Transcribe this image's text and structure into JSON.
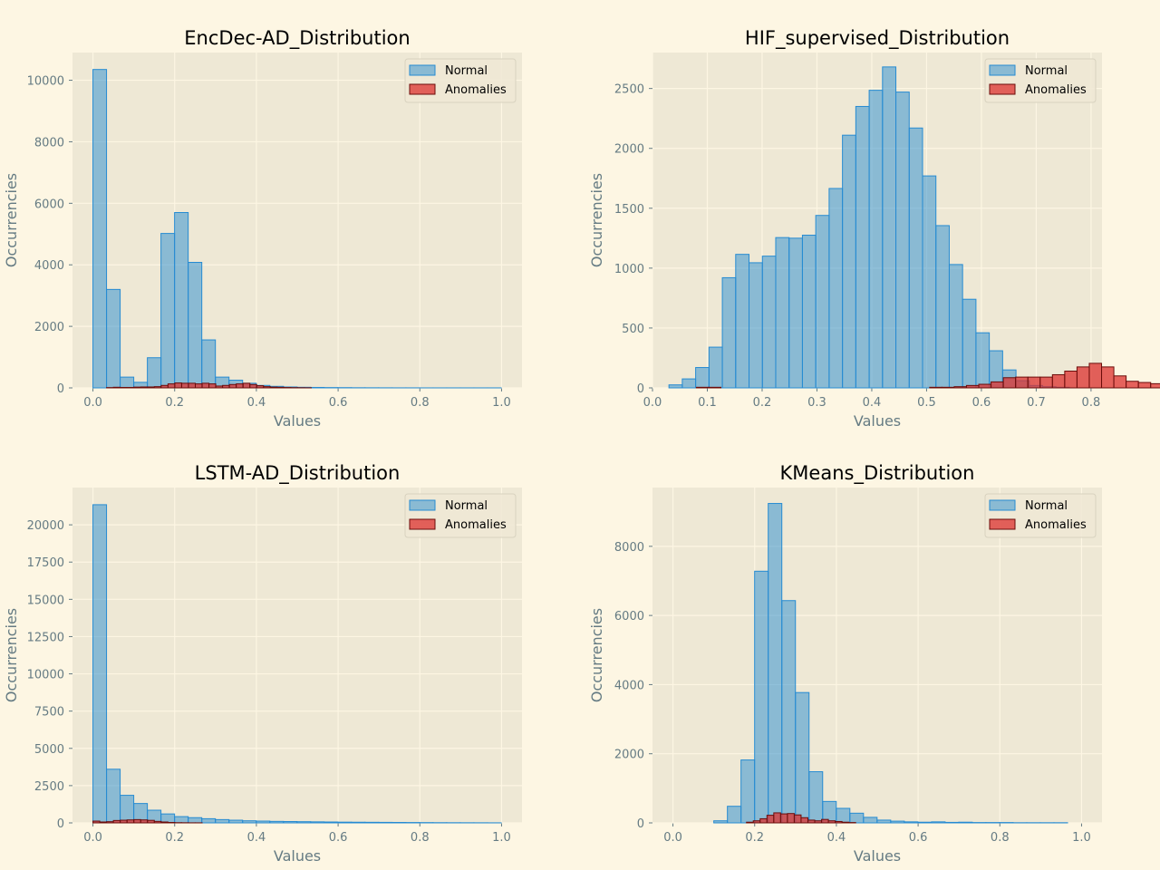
{
  "colors": {
    "figure_bg": "#fdf6e3",
    "axes_bg": "#eee8d5",
    "grid": "#fdf6e3",
    "normal_fill": "#268bd2",
    "normal_edge": "#268bd2",
    "anomaly_fill": "#dc322f",
    "anomaly_edge": "#6b0d0b",
    "text": "#657b83"
  },
  "chart_data": [
    {
      "type": "bar",
      "title": "EncDec-AD_Distribution",
      "xlabel": "Values",
      "ylabel": "Occurrencies",
      "xlim": [
        -0.05,
        1.05
      ],
      "ylim": [
        0,
        10900
      ],
      "xticks": [
        0.0,
        0.2,
        0.4,
        0.6,
        0.8,
        1.0
      ],
      "xtick_labels": [
        "0.0",
        "0.2",
        "0.4",
        "0.6",
        "0.8",
        "1.0"
      ],
      "yticks": [
        0,
        2000,
        4000,
        6000,
        8000,
        10000
      ],
      "ytick_labels": [
        "0",
        "2000",
        "4000",
        "6000",
        "8000",
        "10000"
      ],
      "grid": true,
      "legend": "top-right",
      "series": [
        {
          "name": "Normal",
          "bin_start": 0.0,
          "bin_width": 0.0333,
          "values": [
            10350,
            3200,
            350,
            180,
            980,
            5020,
            5700,
            4080,
            1560,
            350,
            250,
            150,
            80,
            50,
            30,
            20,
            15,
            10,
            8,
            5,
            4,
            3,
            2,
            2,
            1,
            1,
            1,
            1,
            1,
            1
          ]
        },
        {
          "name": "Anomalies",
          "bin_start": 0.0,
          "bin_width": 0.0167,
          "values": [
            0,
            0,
            10,
            20,
            15,
            15,
            25,
            30,
            30,
            40,
            80,
            130,
            160,
            150,
            150,
            130,
            150,
            130,
            60,
            80,
            110,
            130,
            150,
            110,
            70,
            40,
            25,
            20,
            12,
            8,
            5,
            3
          ]
        }
      ]
    },
    {
      "type": "bar",
      "title": "HIF_supervised_Distribution",
      "xlabel": "Values",
      "ylabel": "Occurrencies",
      "xlim": [
        0.0,
        0.82
      ],
      "ylim": [
        0,
        2800
      ],
      "xticks": [
        0.0,
        0.1,
        0.2,
        0.3,
        0.4,
        0.5,
        0.6,
        0.7,
        0.8
      ],
      "xtick_labels": [
        "0.0",
        "0.1",
        "0.2",
        "0.3",
        "0.4",
        "0.5",
        "0.6",
        "0.7",
        "0.8"
      ],
      "yticks": [
        0,
        500,
        1000,
        1500,
        2000,
        2500
      ],
      "ytick_labels": [
        "0",
        "500",
        "1000",
        "1500",
        "2000",
        "2500"
      ],
      "grid": true,
      "legend": "top-right",
      "series": [
        {
          "name": "Normal",
          "bin_start": 0.03,
          "bin_width": 0.02435,
          "values": [
            25,
            75,
            170,
            340,
            920,
            1115,
            1045,
            1100,
            1255,
            1250,
            1275,
            1440,
            1665,
            2110,
            2350,
            2485,
            2680,
            2470,
            2170,
            1770,
            1355,
            1030,
            740,
            460,
            310,
            150,
            60,
            20,
            10,
            5
          ]
        },
        {
          "name": "Anomalies",
          "bin_start": 0.08,
          "bin_width": 0.0224,
          "values": [
            5,
            5,
            0,
            0,
            0,
            0,
            0,
            0,
            0,
            0,
            0,
            0,
            0,
            0,
            0,
            0,
            0,
            0,
            0,
            5,
            5,
            10,
            20,
            30,
            50,
            85,
            90,
            90,
            90,
            110,
            140,
            175,
            205,
            175,
            100,
            55,
            45,
            35,
            20,
            10,
            5,
            2
          ]
        }
      ]
    },
    {
      "type": "bar",
      "title": "LSTM-AD_Distribution",
      "xlabel": "Values",
      "ylabel": "Occurrencies",
      "xlim": [
        -0.05,
        1.05
      ],
      "ylim": [
        0,
        22500
      ],
      "xticks": [
        0.0,
        0.2,
        0.4,
        0.6,
        0.8,
        1.0
      ],
      "xtick_labels": [
        "0.0",
        "0.2",
        "0.4",
        "0.6",
        "0.8",
        "1.0"
      ],
      "yticks": [
        0,
        2500,
        5000,
        7500,
        10000,
        12500,
        15000,
        17500,
        20000
      ],
      "ytick_labels": [
        "0",
        "2500",
        "5000",
        "7500",
        "10000",
        "12500",
        "15000",
        "17500",
        "20000"
      ],
      "grid": true,
      "legend": "top-right",
      "series": [
        {
          "name": "Normal",
          "bin_start": 0.0,
          "bin_width": 0.0333,
          "values": [
            21350,
            3600,
            1850,
            1300,
            850,
            600,
            420,
            350,
            280,
            220,
            180,
            140,
            120,
            100,
            90,
            80,
            70,
            60,
            50,
            45,
            40,
            35,
            30,
            25,
            20,
            15,
            12,
            10,
            8,
            5
          ]
        },
        {
          "name": "Anomalies",
          "bin_start": 0.0,
          "bin_width": 0.0167,
          "values": [
            120,
            60,
            80,
            160,
            180,
            200,
            220,
            200,
            170,
            100,
            60,
            30,
            15,
            10,
            5,
            5
          ]
        }
      ]
    },
    {
      "type": "bar",
      "title": "KMeans_Distribution",
      "xlabel": "Values",
      "ylabel": "Occurrencies",
      "xlim": [
        -0.05,
        1.05
      ],
      "ylim": [
        0,
        9700
      ],
      "xticks": [
        0.0,
        0.2,
        0.4,
        0.6,
        0.8,
        1.0
      ],
      "xtick_labels": [
        "0.0",
        "0.2",
        "0.4",
        "0.6",
        "0.8",
        "1.0"
      ],
      "yticks": [
        0,
        2000,
        4000,
        6000,
        8000
      ],
      "ytick_labels": [
        "0",
        "2000",
        "4000",
        "6000",
        "8000"
      ],
      "grid": true,
      "legend": "top-right",
      "series": [
        {
          "name": "Normal",
          "bin_start": 0.1,
          "bin_width": 0.0333,
          "values": [
            60,
            480,
            1820,
            7280,
            9240,
            6430,
            3770,
            1480,
            620,
            420,
            280,
            160,
            80,
            50,
            30,
            20,
            30,
            15,
            20,
            10,
            10,
            10,
            5,
            5,
            5,
            5
          ]
        },
        {
          "name": "Anomalies",
          "bin_start": 0.18,
          "bin_width": 0.0167,
          "values": [
            20,
            60,
            120,
            220,
            290,
            260,
            270,
            230,
            150,
            80,
            60,
            100,
            60,
            40,
            20,
            10
          ]
        }
      ]
    }
  ]
}
